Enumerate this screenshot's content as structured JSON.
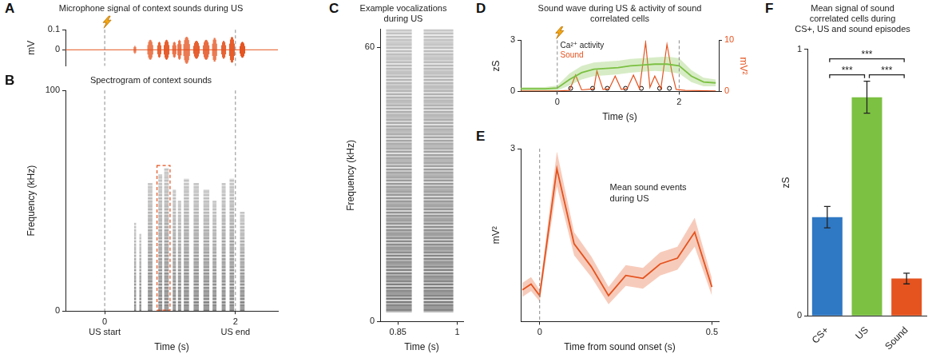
{
  "chart_data": [
    {
      "panel": "A",
      "type": "waveform",
      "title": "Microphone signal of context sounds during US",
      "y_label": "mV",
      "xlim": [
        -0.6,
        2.65
      ],
      "ylim": [
        -0.08,
        0.1
      ],
      "yticks": [
        0,
        0.1
      ],
      "tick_labels": "y",
      "grid": false,
      "color": "#e5531f",
      "vlines": [
        0,
        2
      ],
      "baseline": 0,
      "bursts": [
        {
          "t": [
            0.45,
            0.48
          ],
          "mV": [
            -0.02,
            0.02
          ]
        },
        {
          "t": [
            0.66,
            0.73
          ],
          "mV": [
            -0.05,
            0.05
          ]
        },
        {
          "t": [
            0.81,
            0.86
          ],
          "mV": [
            -0.04,
            0.04
          ]
        },
        {
          "t": [
            0.91,
            0.98
          ],
          "mV": [
            -0.05,
            0.05
          ]
        },
        {
          "t": [
            1.04,
            1.09
          ],
          "mV": [
            -0.04,
            0.04
          ]
        },
        {
          "t": [
            1.12,
            1.17
          ],
          "mV": [
            -0.05,
            0.05
          ]
        },
        {
          "t": [
            1.21,
            1.29
          ],
          "mV": [
            -0.07,
            0.065
          ]
        },
        {
          "t": [
            1.36,
            1.44
          ],
          "mV": [
            -0.045,
            0.045
          ]
        },
        {
          "t": [
            1.51,
            1.6
          ],
          "mV": [
            -0.05,
            0.05
          ]
        },
        {
          "t": [
            1.65,
            1.71
          ],
          "mV": [
            -0.06,
            0.06
          ]
        },
        {
          "t": [
            1.79,
            1.85
          ],
          "mV": [
            -0.045,
            0.045
          ]
        },
        {
          "t": [
            1.91,
            1.98
          ],
          "mV": [
            -0.065,
            0.065
          ]
        },
        {
          "t": [
            2.07,
            2.14
          ],
          "mV": [
            -0.04,
            0.04
          ]
        }
      ]
    },
    {
      "panel": "B",
      "type": "spectrogram",
      "title": "Spectrogram of context sounds",
      "x_label": "Time (s)",
      "y_label": "Frequency (kHz)",
      "xlim": [
        -0.6,
        2.65
      ],
      "ylim": [
        0,
        100
      ],
      "xticks": [
        0,
        2
      ],
      "yticks": [
        0,
        100
      ],
      "grid": false,
      "x_annotations": [
        {
          "x": 0,
          "text": "US start"
        },
        {
          "x": 2,
          "text": "US end"
        }
      ],
      "vlines": [
        0,
        2
      ],
      "color": "#3a3a3a",
      "calls": [
        {
          "t": [
            0.45,
            0.48
          ],
          "kHz": [
            0,
            40
          ]
        },
        {
          "t": [
            0.53,
            0.56
          ],
          "kHz": [
            0,
            35
          ]
        },
        {
          "t": [
            0.66,
            0.73
          ],
          "kHz": [
            0,
            58
          ]
        },
        {
          "t": [
            0.82,
            0.88
          ],
          "kHz": [
            0,
            62
          ]
        },
        {
          "t": [
            0.91,
            0.98
          ],
          "kHz": [
            0,
            65
          ]
        },
        {
          "t": [
            1.04,
            1.09
          ],
          "kHz": [
            0,
            55
          ]
        },
        {
          "t": [
            1.12,
            1.17
          ],
          "kHz": [
            0,
            50
          ]
        },
        {
          "t": [
            1.21,
            1.29
          ],
          "kHz": [
            0,
            60
          ]
        },
        {
          "t": [
            1.36,
            1.44
          ],
          "kHz": [
            0,
            58
          ]
        },
        {
          "t": [
            1.51,
            1.6
          ],
          "kHz": [
            0,
            55
          ]
        },
        {
          "t": [
            1.65,
            1.71
          ],
          "kHz": [
            0,
            50
          ]
        },
        {
          "t": [
            1.79,
            1.85
          ],
          "kHz": [
            0,
            58
          ]
        },
        {
          "t": [
            1.91,
            1.98
          ],
          "kHz": [
            0,
            60
          ]
        },
        {
          "t": [
            2.07,
            2.14
          ],
          "kHz": [
            0,
            45
          ]
        }
      ],
      "highlight": {
        "t": [
          0.8,
          1.0
        ],
        "kHz": [
          0,
          66
        ],
        "color": "#e5531f"
      }
    },
    {
      "panel": "C",
      "type": "spectrogram",
      "title": "Example vocalizations during US",
      "x_label": "Time (s)",
      "y_label": "Frequency (kHz)",
      "xlim": [
        0.805,
        1.015
      ],
      "ylim": [
        0,
        64
      ],
      "xticks": [
        0.85,
        1
      ],
      "yticks": [
        0,
        60
      ],
      "grid": false,
      "color": "#3a3a3a",
      "calls": [
        {
          "t": [
            0.82,
            0.885
          ],
          "kHz": [
            2,
            64
          ]
        },
        {
          "t": [
            0.915,
            0.99
          ],
          "kHz": [
            2,
            64
          ]
        }
      ]
    },
    {
      "panel": "D",
      "type": "line",
      "title": "Sound wave during US & activity of sound correlated cells",
      "x_label": "Time (s)",
      "y_label": "zS",
      "y2_label": "mV²",
      "xlim": [
        -0.6,
        2.65
      ],
      "ylim": [
        0,
        3
      ],
      "y2lim": [
        0,
        10
      ],
      "xticks": [
        0,
        2
      ],
      "yticks": [
        0,
        3
      ],
      "y2ticks": [
        0,
        10
      ],
      "grid": false,
      "legend": "top-left",
      "vlines": [
        0,
        2
      ],
      "series": [
        {
          "name": "Ca²⁺ activity",
          "color": "#7cc142",
          "axis": "y",
          "x": [
            -0.6,
            -0.4,
            -0.2,
            0,
            0.2,
            0.4,
            0.6,
            0.8,
            1.0,
            1.2,
            1.4,
            1.6,
            1.8,
            2.0,
            2.2,
            2.4,
            2.6
          ],
          "values": [
            0.15,
            0.15,
            0.15,
            0.2,
            0.7,
            1.1,
            1.3,
            1.35,
            1.4,
            1.5,
            1.55,
            1.6,
            1.6,
            1.5,
            0.9,
            0.55,
            0.5
          ],
          "errors": [
            0.1,
            0.1,
            0.1,
            0.15,
            0.35,
            0.4,
            0.4,
            0.4,
            0.4,
            0.4,
            0.4,
            0.4,
            0.45,
            0.45,
            0.35,
            0.25,
            0.2
          ]
        },
        {
          "name": "Sound",
          "color": "#e5531f",
          "axis": "y2",
          "x": [
            -0.6,
            0,
            0.2,
            0.3,
            0.4,
            0.6,
            0.65,
            0.75,
            0.85,
            0.95,
            1.05,
            1.15,
            1.25,
            1.35,
            1.45,
            1.52,
            1.6,
            1.7,
            1.8,
            1.88,
            1.95,
            2.1,
            2.6
          ],
          "values": [
            0.1,
            0.1,
            0.2,
            3.2,
            0.3,
            0.5,
            4,
            0.4,
            0.5,
            3,
            0.4,
            0.6,
            3.2,
            0.5,
            9.6,
            0.8,
            3,
            0.5,
            9.2,
            3.8,
            0.4,
            0.2,
            0.1
          ]
        },
        {
          "type": "scatter",
          "marker": "circle",
          "color": "#000000",
          "axis": "y2",
          "x": [
            0.22,
            0.58,
            0.82,
            1.12,
            1.38,
            1.68,
            1.84
          ],
          "values": [
            0.6,
            0.6,
            0.6,
            0.6,
            0.6,
            0.6,
            0.6
          ]
        }
      ]
    },
    {
      "panel": "E",
      "type": "line",
      "annotation": "Mean sound events during US",
      "x_label": "Time from sound onset (s)",
      "y_label": "mV²",
      "xlim": [
        -0.055,
        0.52
      ],
      "ylim": [
        0,
        3
      ],
      "xticks": [
        0,
        0.5
      ],
      "yticks": [
        3
      ],
      "grid": false,
      "vlines": [
        0
      ],
      "series": [
        {
          "color": "#e5531f",
          "x": [
            -0.05,
            -0.025,
            0,
            0.05,
            0.1,
            0.15,
            0.2,
            0.25,
            0.3,
            0.35,
            0.4,
            0.45,
            0.5
          ],
          "values": [
            0.55,
            0.65,
            0.45,
            2.65,
            1.35,
            0.95,
            0.45,
            0.8,
            0.75,
            1.0,
            1.1,
            1.55,
            0.6
          ],
          "errors": [
            0.12,
            0.12,
            0.1,
            0.3,
            0.2,
            0.18,
            0.15,
            0.18,
            0.18,
            0.2,
            0.2,
            0.25,
            0.15
          ]
        }
      ]
    },
    {
      "panel": "F",
      "type": "bar",
      "title": "Mean signal of sound correlated cells during CS+, US and sound episodes",
      "y_label": "zS",
      "categories": [
        "CS+",
        "US",
        "Sound"
      ],
      "values": [
        0.37,
        0.82,
        0.14
      ],
      "errors": [
        0.04,
        0.06,
        0.02
      ],
      "colors": [
        "#2f78c4",
        "#7cc142",
        "#e5531f"
      ],
      "ylim": [
        0,
        1
      ],
      "yticks": [
        0,
        1
      ],
      "grid": false,
      "comparisons": [
        {
          "pair": [
            "CS+",
            "US"
          ],
          "label": "***"
        },
        {
          "pair": [
            "US",
            "Sound"
          ],
          "label": "***"
        },
        {
          "pair": [
            "CS+",
            "Sound"
          ],
          "label": "***"
        }
      ]
    }
  ]
}
